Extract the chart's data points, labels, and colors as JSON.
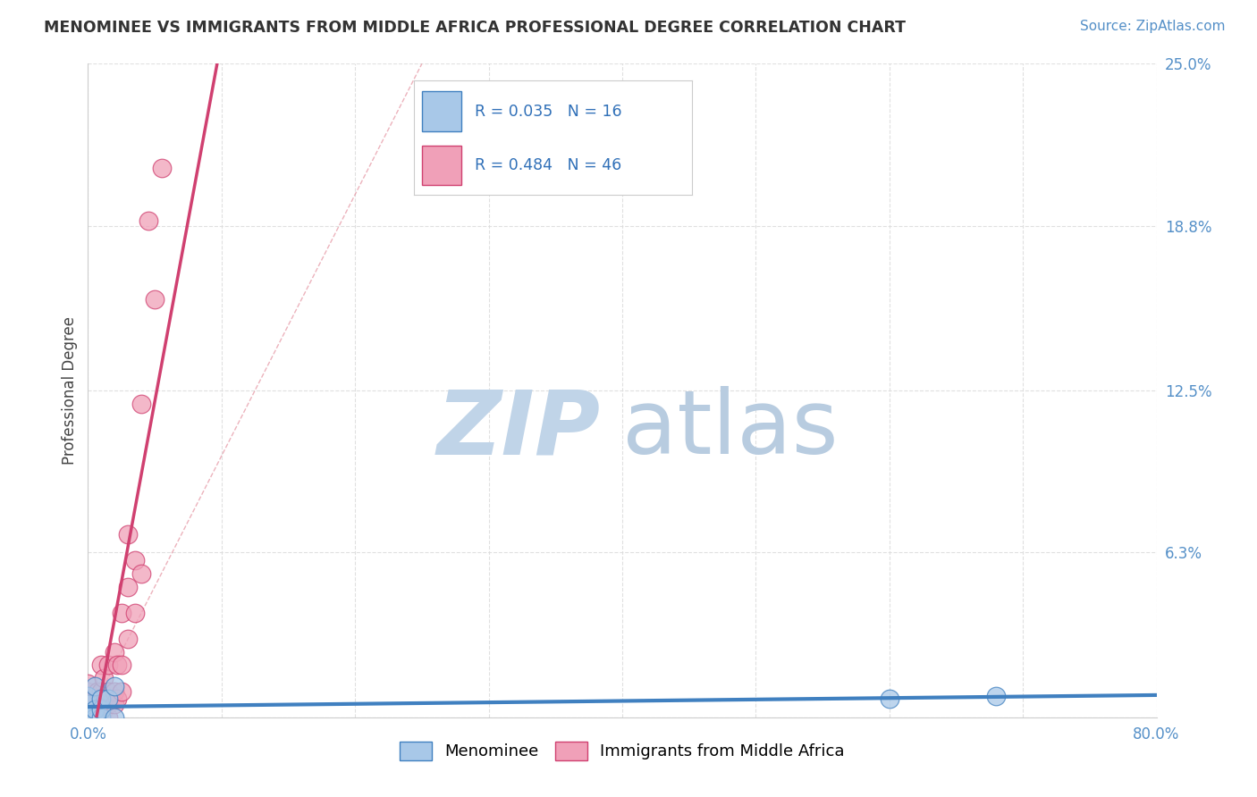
{
  "title": "MENOMINEE VS IMMIGRANTS FROM MIDDLE AFRICA PROFESSIONAL DEGREE CORRELATION CHART",
  "source": "Source: ZipAtlas.com",
  "xlabel": "",
  "ylabel": "Professional Degree",
  "xlim": [
    0.0,
    0.8
  ],
  "ylim": [
    0.0,
    0.25
  ],
  "yticks": [
    0.0,
    0.063,
    0.125,
    0.188,
    0.25
  ],
  "ytick_labels": [
    "",
    "6.3%",
    "12.5%",
    "18.8%",
    "25.0%"
  ],
  "xticks": [
    0.0,
    0.1,
    0.2,
    0.3,
    0.4,
    0.5,
    0.6,
    0.7,
    0.8
  ],
  "xtick_labels": [
    "0.0%",
    "",
    "",
    "",
    "",
    "",
    "",
    "",
    "80.0%"
  ],
  "legend_labels": [
    "Menominee",
    "Immigrants from Middle Africa"
  ],
  "R_menominee": 0.035,
  "N_menominee": 16,
  "R_immigrants": 0.484,
  "N_immigrants": 46,
  "color_menominee": "#A8C8E8",
  "color_immigrants": "#F0A0B8",
  "color_line_menominee": "#4080C0",
  "color_line_immigrants": "#D04070",
  "color_diagonal": "#E08090",
  "watermark_zip_color": "#C0D4E8",
  "watermark_atlas_color": "#B8CCE0",
  "menominee_x": [
    0.0,
    0.0,
    0.0,
    0.0,
    0.0,
    0.005,
    0.005,
    0.005,
    0.01,
    0.01,
    0.01,
    0.015,
    0.02,
    0.02,
    0.6,
    0.68
  ],
  "menominee_y": [
    0.0,
    0.0,
    0.0,
    0.005,
    0.008,
    0.0,
    0.003,
    0.012,
    0.0,
    0.003,
    0.007,
    0.007,
    0.0,
    0.012,
    0.007,
    0.008
  ],
  "immigrants_x": [
    0.0,
    0.0,
    0.0,
    0.0,
    0.0,
    0.0,
    0.0,
    0.0,
    0.003,
    0.003,
    0.005,
    0.005,
    0.005,
    0.007,
    0.007,
    0.007,
    0.01,
    0.01,
    0.01,
    0.01,
    0.01,
    0.012,
    0.012,
    0.012,
    0.015,
    0.015,
    0.015,
    0.015,
    0.02,
    0.02,
    0.02,
    0.022,
    0.022,
    0.025,
    0.025,
    0.025,
    0.03,
    0.03,
    0.03,
    0.035,
    0.035,
    0.04,
    0.04,
    0.045,
    0.05,
    0.055
  ],
  "immigrants_y": [
    0.0,
    0.0,
    0.0,
    0.003,
    0.005,
    0.007,
    0.01,
    0.013,
    0.0,
    0.003,
    0.0,
    0.003,
    0.007,
    0.0,
    0.003,
    0.01,
    0.0,
    0.003,
    0.007,
    0.01,
    0.02,
    0.003,
    0.007,
    0.015,
    0.0,
    0.005,
    0.01,
    0.02,
    0.005,
    0.01,
    0.025,
    0.007,
    0.02,
    0.01,
    0.02,
    0.04,
    0.03,
    0.05,
    0.07,
    0.04,
    0.06,
    0.055,
    0.12,
    0.19,
    0.16,
    0.21
  ],
  "background_color": "#FFFFFF",
  "grid_color": "#DDDDDD"
}
